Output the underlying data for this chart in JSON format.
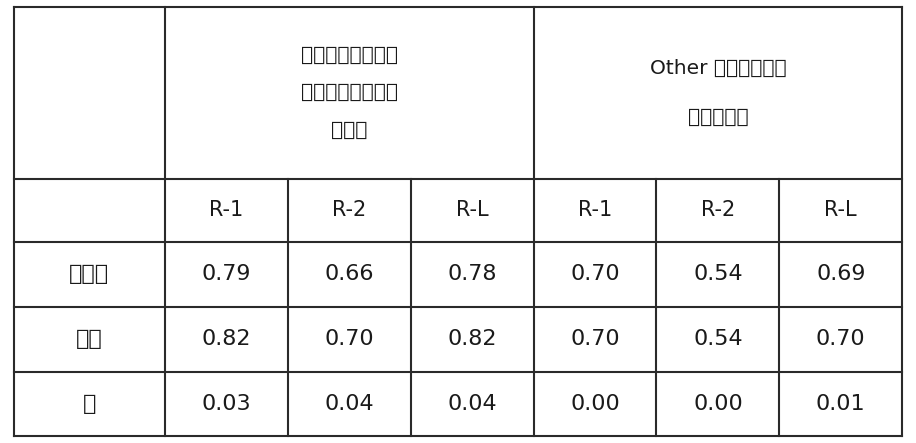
{
  "header_group1_line1": "個人を識別できる",
  "header_group1_line2": "タグが付与された",
  "header_group1_line3": "データ",
  "header_group2_line1": "Other タグが付与さ",
  "header_group2_line2": "れたデータ",
  "sub_headers": [
    "R-1",
    "R-2",
    "R-L",
    "R-1",
    "R-2",
    "R-L"
  ],
  "row_labels": [
    "ベース",
    "タグ",
    "差"
  ],
  "data": [
    [
      "0.79",
      "0.66",
      "0.78",
      "0.70",
      "0.54",
      "0.69"
    ],
    [
      "0.82",
      "0.70",
      "0.82",
      "0.70",
      "0.54",
      "0.70"
    ],
    [
      "0.03",
      "0.04",
      "0.04",
      "0.00",
      "0.00",
      "0.01"
    ]
  ],
  "bg_color": "#ffffff",
  "text_color": "#1a1a1a",
  "line_color": "#2a2a2a",
  "font_size_header": 14.5,
  "font_size_sub": 15,
  "font_size_data": 16,
  "font_size_row": 16
}
